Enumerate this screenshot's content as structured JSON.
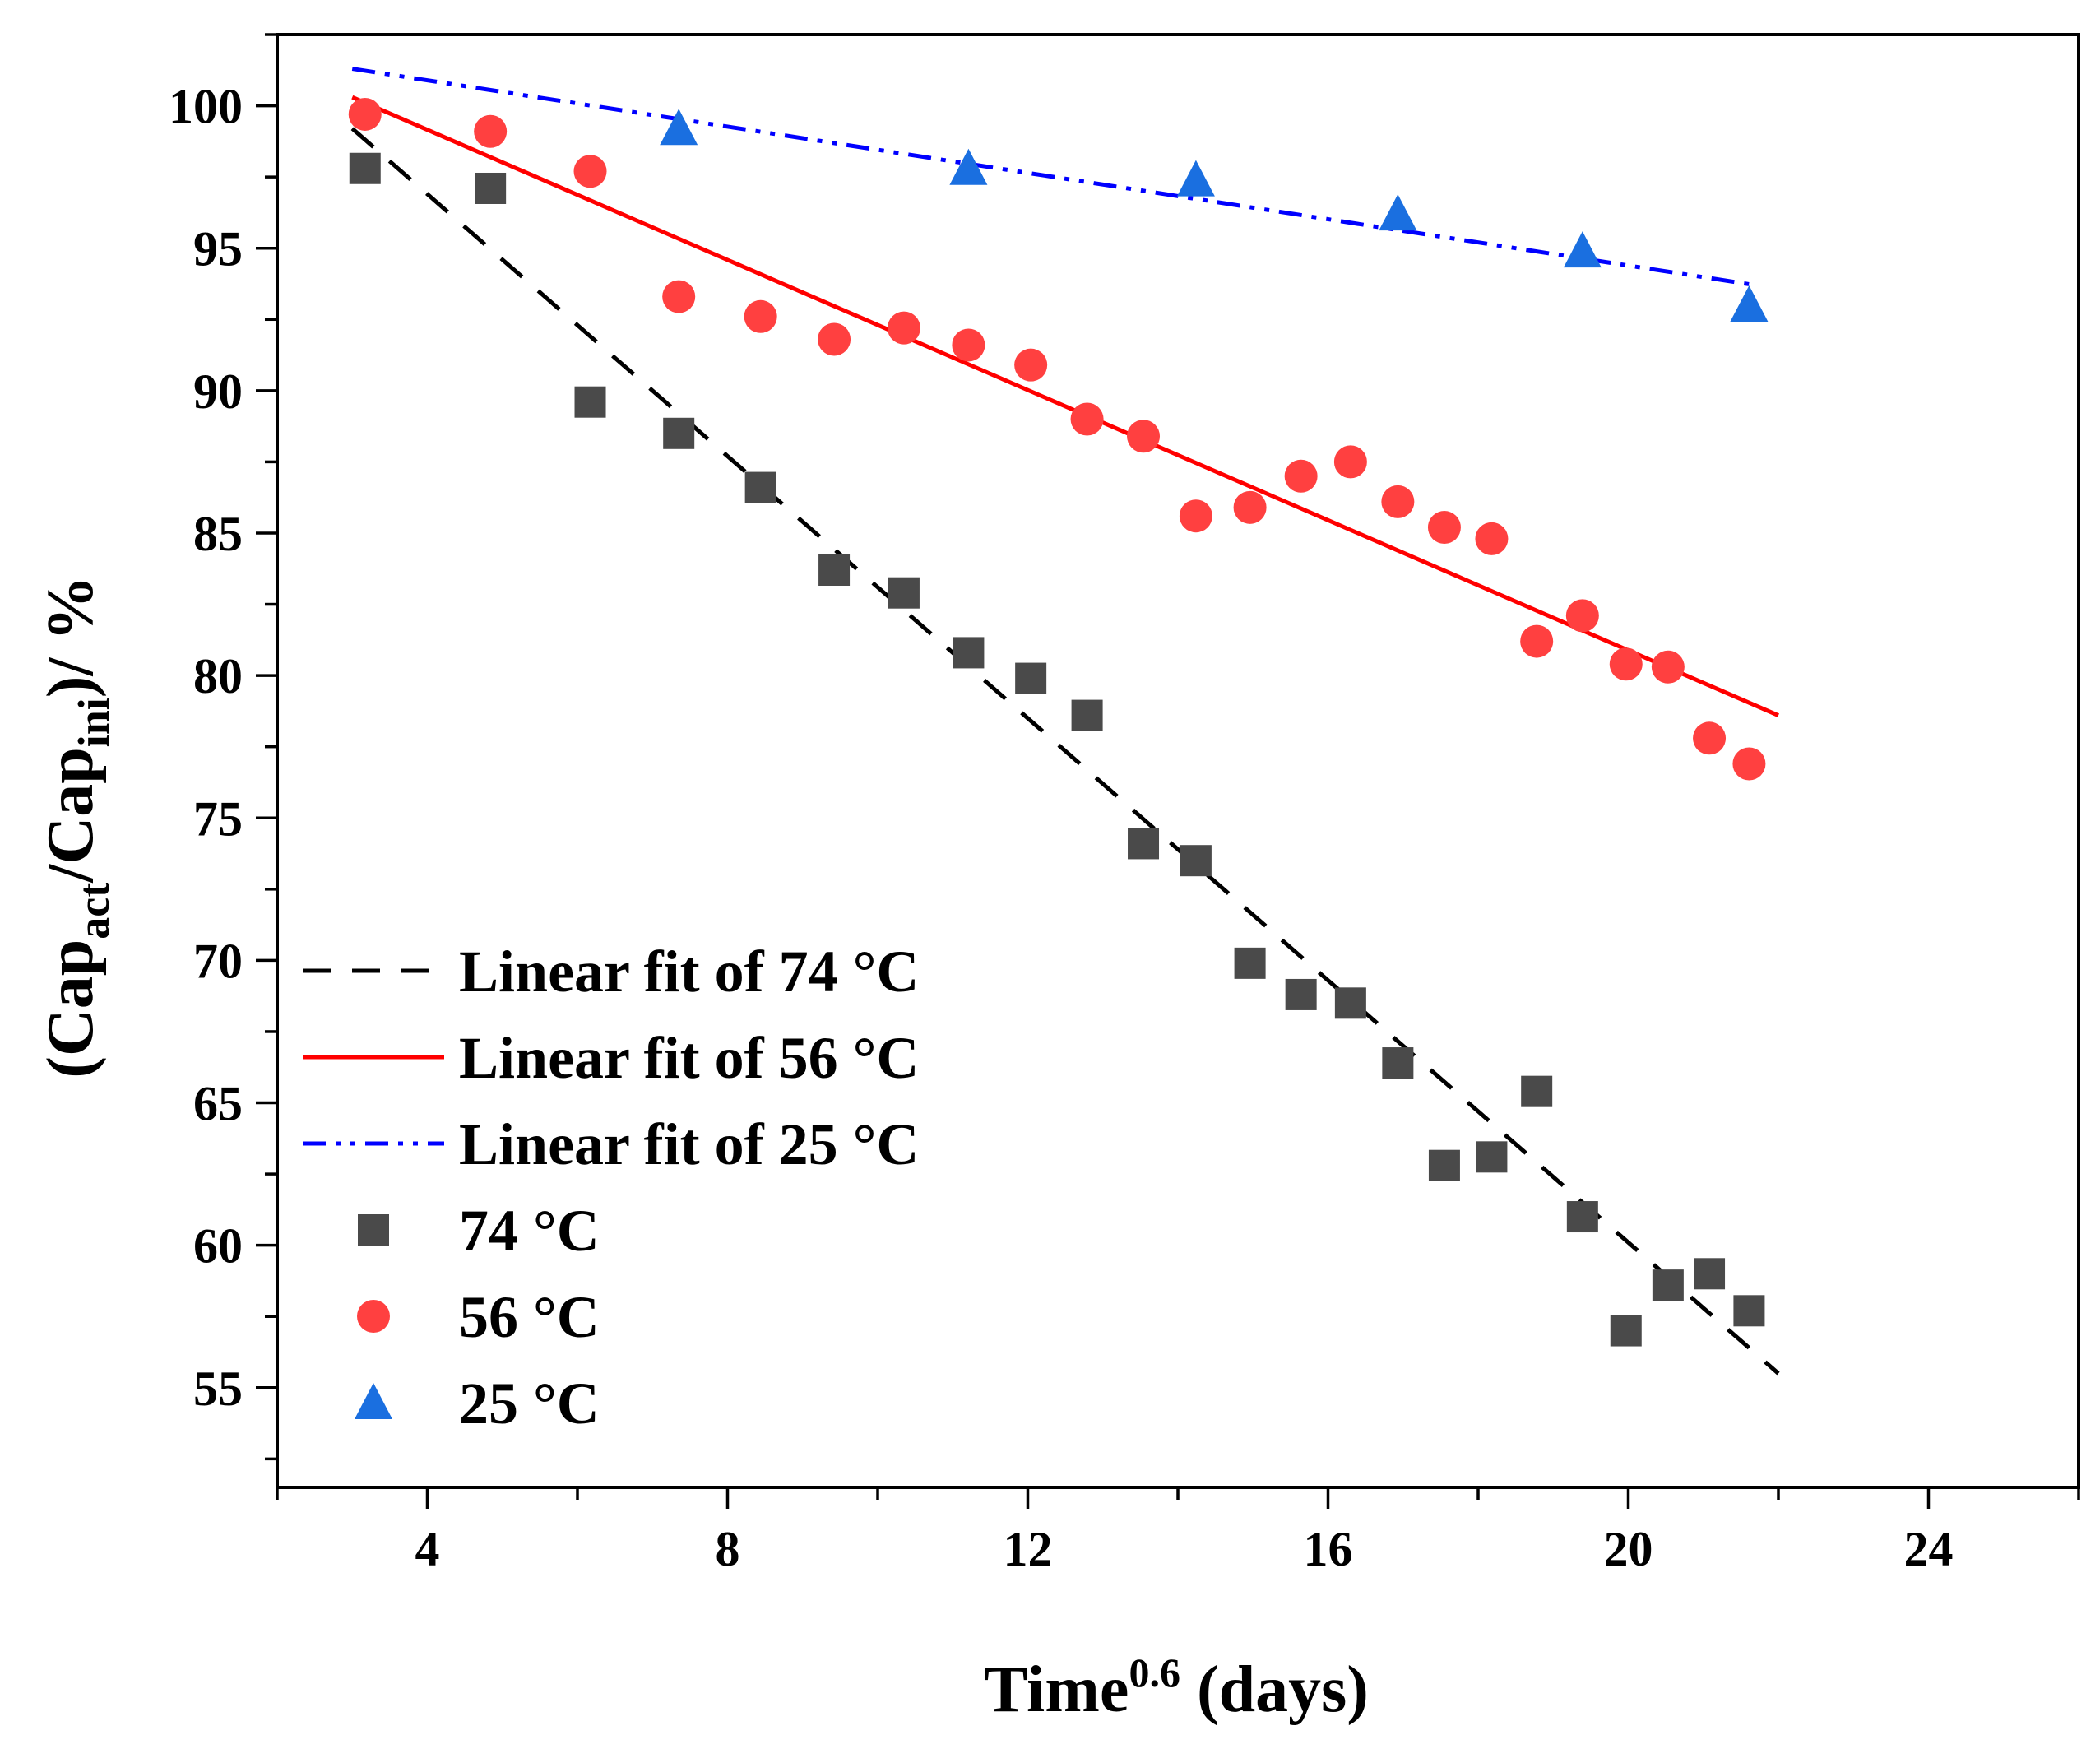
{
  "chart_data": {
    "type": "scatter",
    "title": "",
    "xlabel": {
      "base": "Time",
      "sup": "0.6",
      "suffix": " (days)"
    },
    "ylabel": {
      "open": "(Cap",
      "sub1": "act",
      "mid": "/Cap",
      "sub2": "ini",
      "close": ")/ %"
    },
    "xlim": [
      2,
      26
    ],
    "ylim": [
      51.5,
      102.5
    ],
    "x_ticks": [
      4,
      8,
      12,
      16,
      20,
      24
    ],
    "y_ticks": [
      55,
      60,
      65,
      70,
      75,
      80,
      85,
      90,
      95,
      100
    ],
    "legend_position": "bottom-left",
    "series": [
      {
        "name": "74 °C",
        "kind": "scatter",
        "marker": "square",
        "color": "#4a4a4a",
        "x": [
          3.17,
          4.84,
          6.17,
          7.35,
          8.44,
          9.42,
          10.35,
          11.21,
          12.04,
          12.79,
          13.54,
          14.24,
          14.96,
          15.64,
          16.3,
          16.93,
          17.55,
          18.18,
          18.78,
          19.39,
          19.97,
          20.53,
          21.08,
          21.61
        ],
        "y": [
          97.8,
          97.1,
          89.6,
          88.5,
          86.6,
          83.7,
          82.9,
          80.8,
          79.9,
          78.6,
          74.1,
          73.5,
          69.9,
          68.8,
          68.5,
          66.4,
          62.8,
          63.1,
          65.4,
          61.0,
          57.0,
          58.6,
          59.0,
          57.7
        ]
      },
      {
        "name": "56 °C",
        "kind": "scatter",
        "marker": "circle",
        "color": "#ff4040",
        "x": [
          3.17,
          4.84,
          6.17,
          7.35,
          8.44,
          9.42,
          10.35,
          11.21,
          12.04,
          12.79,
          13.54,
          14.24,
          14.96,
          15.64,
          16.3,
          16.93,
          17.55,
          18.18,
          18.78,
          19.39,
          19.97,
          20.53,
          21.08,
          21.61
        ],
        "y": [
          99.7,
          99.1,
          97.7,
          93.3,
          92.6,
          91.8,
          92.2,
          91.6,
          90.9,
          89.0,
          88.4,
          85.6,
          85.9,
          87.0,
          87.5,
          86.1,
          85.2,
          84.8,
          81.2,
          82.1,
          80.4,
          80.3,
          77.8,
          76.9
        ]
      },
      {
        "name": "25 °C",
        "kind": "scatter",
        "marker": "triangle",
        "color": "#1a6fe0",
        "x": [
          7.35,
          11.21,
          14.24,
          16.93,
          19.39,
          21.61
        ],
        "y": [
          99.2,
          97.8,
          97.4,
          96.2,
          94.9,
          93.0
        ]
      },
      {
        "name": "Linear fit of 74 °C",
        "kind": "line",
        "style": "dash",
        "color": "#000000",
        "x": [
          3.0,
          22.0
        ],
        "y": [
          99.2,
          55.5
        ]
      },
      {
        "name": "Linear fit of 56 °C",
        "kind": "line",
        "style": "solid",
        "color": "#ff0000",
        "x": [
          3.0,
          22.0
        ],
        "y": [
          100.3,
          78.6
        ]
      },
      {
        "name": "Linear fit of 25 °C",
        "kind": "line",
        "style": "dashdotdot",
        "color": "#0000ff",
        "x": [
          3.0,
          21.7
        ],
        "y": [
          101.3,
          93.7
        ]
      }
    ],
    "legend_order": [
      "Linear fit of 74 °C",
      "Linear fit of 56 °C",
      "Linear fit of 25 °C",
      "74 °C",
      "56 °C",
      "25 °C"
    ]
  }
}
